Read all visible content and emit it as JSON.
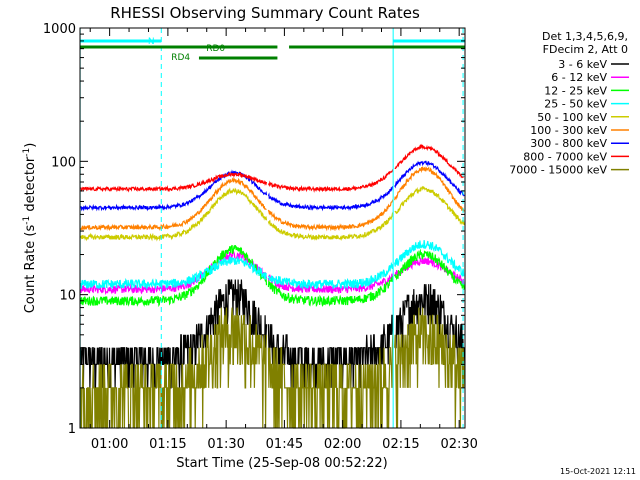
{
  "chart_data": {
    "type": "line",
    "title": "RHESSI Observing Summary Count Rates",
    "xlabel": "Start Time (25-Sep-08 00:52:22)",
    "ylabel": "Count Rate (s",
    "ylabel_sup1": "-1",
    "ylabel_mid": " detector",
    "ylabel_sup2": "-1",
    "ylabel_end": ")",
    "y_scale": "log",
    "ylim": [
      1,
      1000
    ],
    "y_ticks": [
      {
        "value": 1,
        "label": "1"
      },
      {
        "value": 10,
        "label": "10"
      },
      {
        "value": 100,
        "label": "100"
      },
      {
        "value": 1000,
        "label": "1000"
      }
    ],
    "xlim_minutes": [
      52.37,
      151.5
    ],
    "x_ticks": [
      {
        "minute": 60,
        "label": "01:00"
      },
      {
        "minute": 75,
        "label": "01:15"
      },
      {
        "minute": 90,
        "label": "01:30"
      },
      {
        "minute": 105,
        "label": "01:45"
      },
      {
        "minute": 120,
        "label": "02:00"
      },
      {
        "minute": 135,
        "label": "02:15"
      },
      {
        "minute": 150,
        "label": "02:30"
      }
    ],
    "legend_header": [
      "Det 1,3,4,5,6,9,",
      "FDecim 2, Att 0"
    ],
    "legend_position": "right",
    "flags": [
      {
        "label": "N",
        "color": "#00ffff",
        "segments": [
          [
            52.4,
            73.3
          ],
          [
            133.0,
            151.5
          ]
        ],
        "level": "upper"
      },
      {
        "label": "RD0",
        "color": "#008000",
        "segments": [
          [
            52.4,
            103.2
          ],
          [
            106.2,
            151.5
          ]
        ],
        "level": "middle"
      },
      {
        "label": "RD4",
        "color": "#008000",
        "segments": [
          [
            83.0,
            103.2
          ]
        ],
        "level": "lower"
      }
    ],
    "vertical_markers": [
      {
        "minute": 52.4,
        "style": "solid",
        "color": "#00ffff"
      },
      {
        "minute": 73.3,
        "style": "dashed",
        "color": "#00ffff"
      },
      {
        "minute": 133.0,
        "style": "solid",
        "color": "#00ffff"
      },
      {
        "minute": 151.0,
        "style": "dashed",
        "color": "#00ffff"
      }
    ],
    "series": [
      {
        "name": "3 - 6 keV",
        "color": "#000000",
        "base": 3.2,
        "peak1": 10,
        "peak2": 9.5,
        "noise": 0.35
      },
      {
        "name": "6 - 12 keV",
        "color": "#ff00ff",
        "base": 11,
        "peak1": 20,
        "peak2": 18,
        "noise": 0.07
      },
      {
        "name": "12 - 25 keV",
        "color": "#00ff00",
        "base": 9,
        "peak1": 22,
        "peak2": 20,
        "noise": 0.08
      },
      {
        "name": "25 - 50 keV",
        "color": "#00ffff",
        "base": 12,
        "peak1": 18,
        "peak2": 24,
        "noise": 0.08
      },
      {
        "name": "50 - 100 keV",
        "color": "#cccc00",
        "base": 27,
        "peak1": 60,
        "peak2": 62,
        "noise": 0.04
      },
      {
        "name": "100 - 300 keV",
        "color": "#ff8000",
        "base": 32,
        "peak1": 72,
        "peak2": 88,
        "noise": 0.035
      },
      {
        "name": "300 - 800 keV",
        "color": "#0000ff",
        "base": 45,
        "peak1": 82,
        "peak2": 98,
        "noise": 0.03
      },
      {
        "name": "800 - 7000 keV",
        "color": "#ff0000",
        "base": 62,
        "peak1": 80,
        "peak2": 128,
        "noise": 0.03
      },
      {
        "name": "7000 - 15000 keV",
        "color": "#808000",
        "base": 2.0,
        "peak1": 5.6,
        "peak2": 5.0,
        "noise": 0.6
      }
    ]
  },
  "footer_timestamp": "15-Oct-2021 12:11"
}
